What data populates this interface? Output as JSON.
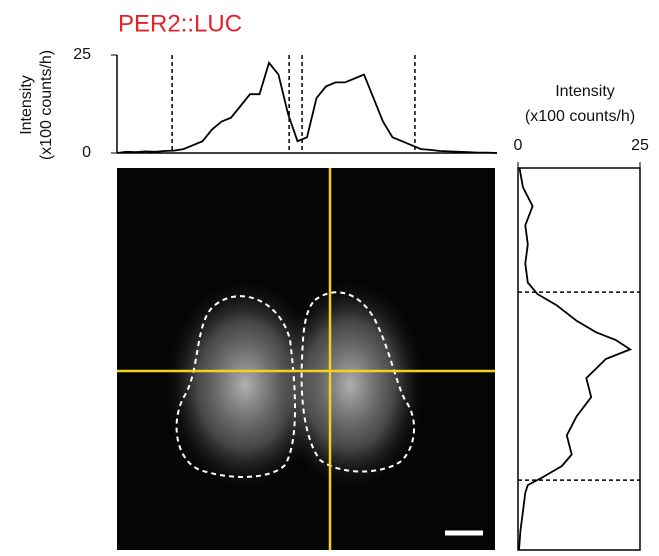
{
  "chart_data": [
    {
      "type": "line",
      "title": "PER2::LUC",
      "ylabel": [
        "Intensity",
        "(x100 counts/h)"
      ],
      "x": [
        0,
        2.5,
        5,
        7.5,
        10,
        12.5,
        15,
        17.5,
        20,
        22.5,
        25,
        27.5,
        30,
        32.5,
        35,
        37.5,
        40,
        42.5,
        45,
        47.5,
        50,
        52.5,
        55,
        57.5,
        60,
        62.5,
        65,
        67.5,
        70,
        72.5,
        75,
        77.5,
        80,
        82.5,
        85,
        87.5,
        90,
        92.5,
        95,
        97.5,
        100
      ],
      "values": [
        0,
        0.3,
        0.2,
        0.4,
        0.3,
        0.5,
        0.6,
        1,
        2,
        3,
        6,
        8,
        9,
        12,
        15,
        15,
        23,
        20,
        10,
        3,
        4,
        14,
        17,
        18,
        18,
        19,
        20,
        14,
        8,
        4,
        3,
        2,
        1,
        0.8,
        0.5,
        0.4,
        0.3,
        0.2,
        0.1,
        0.1,
        0
      ],
      "boundaries": [
        14.5,
        45.3,
        48.7,
        78.4
      ],
      "xlim": [
        0,
        100
      ],
      "ylim": [
        0,
        25
      ],
      "yticks": [
        0,
        25
      ],
      "color": "#000000"
    },
    {
      "type": "line",
      "orientation": "vertical",
      "ylabel": [
        "Intensity",
        "(x100 counts/h)"
      ],
      "x": [
        0,
        5,
        10,
        15,
        20,
        25,
        30,
        33,
        36,
        40,
        43,
        45,
        47.5,
        50,
        52.5,
        55,
        60,
        65,
        70,
        75,
        78,
        81,
        83,
        85,
        90,
        95,
        100
      ],
      "values": [
        0.3,
        1,
        3,
        1.5,
        2,
        1.5,
        2,
        4,
        8,
        12,
        16,
        20,
        23,
        18,
        16,
        14,
        15,
        12,
        10,
        11,
        9,
        5,
        2,
        1.5,
        1,
        0.5,
        0.2
      ],
      "boundaries": [
        32.5,
        81.7
      ],
      "xlim": [
        0,
        100
      ],
      "ylim": [
        0,
        25
      ],
      "yticks": [
        0,
        25
      ],
      "color": "#000000"
    }
  ]
}
